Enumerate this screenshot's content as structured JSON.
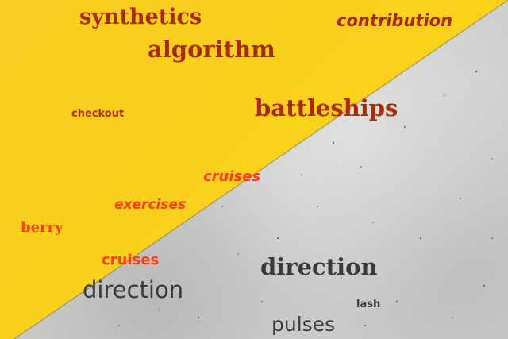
{
  "words": {
    "synthetics": "synthetics",
    "contribution": "contribution",
    "algorithm": "algorithm",
    "checkout": "checkout",
    "battleships": "battleships",
    "cruises_top": "cruises",
    "exercises": "exercises",
    "berry": "berry",
    "cruises_bottom": "cruises",
    "direction_right": "direction",
    "direction_left": "direction",
    "lash": "lash",
    "pulses": "pulses"
  },
  "colors": {
    "yellow_background": "#f9cf1c",
    "concrete_background": "#cfcfcd",
    "dark_red_text": "#a82a08",
    "orange_red_text": "#ff3c12",
    "charcoal_text": "#3a3a3a"
  }
}
